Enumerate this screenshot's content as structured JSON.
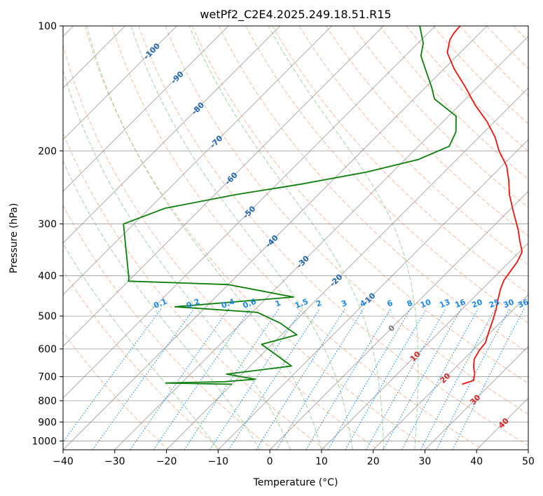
{
  "chart_data": {
    "type": "line",
    "subtype": "skew-t-log-p",
    "title": "wetPf2_C2E4.2025.249.18.51.R15",
    "xlabel": "Temperature (°C)",
    "ylabel": "Pressure (hPa)",
    "xlim": [
      -40,
      50
    ],
    "ylim": [
      1050,
      100
    ],
    "yscale": "log",
    "x_ticks": [
      -40,
      -30,
      -20,
      -10,
      0,
      10,
      20,
      30,
      40,
      50
    ],
    "y_ticks": [
      100,
      200,
      300,
      400,
      500,
      600,
      700,
      800,
      900,
      1000
    ],
    "grid": true,
    "colors": {
      "temperature": "#e8150f",
      "dewpoint": "#0a7d0a",
      "isotherm": "#888888",
      "dry_adiabat": "#f4a582",
      "moist_adiabat": "#8cc98c",
      "mixing_ratio": "#1e88e5",
      "isotherm_label": "#2166ac",
      "warm_isotherm_label": "#d62728",
      "zero_isotherm_label": "#777777"
    },
    "isotherm_labels": [
      {
        "text": "-100",
        "p": 115
      },
      {
        "text": "-90",
        "p": 133
      },
      {
        "text": "-80",
        "p": 158
      },
      {
        "text": "-70",
        "p": 190
      },
      {
        "text": "-60",
        "p": 233
      },
      {
        "text": "-50",
        "p": 281
      },
      {
        "text": "-40",
        "p": 330
      },
      {
        "text": "-30",
        "p": 370
      },
      {
        "text": "-20",
        "p": 410
      },
      {
        "text": "-10",
        "p": 455
      },
      {
        "text": "0",
        "p": 535
      },
      {
        "text": "10",
        "p": 625
      },
      {
        "text": "20",
        "p": 705
      },
      {
        "text": "30",
        "p": 795
      },
      {
        "text": "40",
        "p": 905
      }
    ],
    "mixing_ratio_labels": [
      "0.1",
      "0.2",
      "0.4",
      "0.6",
      "1",
      "1.5",
      "2",
      "3",
      "4",
      "6",
      "8",
      "10",
      "13",
      "16",
      "20",
      "25",
      "30",
      "36"
    ],
    "series": [
      {
        "name": "Temperature",
        "points": [
          {
            "t": 24.5,
            "p": 730
          },
          {
            "t": 26.0,
            "p": 715
          },
          {
            "t": 25.0,
            "p": 690
          },
          {
            "t": 23.5,
            "p": 665
          },
          {
            "t": 22.0,
            "p": 635
          },
          {
            "t": 21.3,
            "p": 605
          },
          {
            "t": 21.0,
            "p": 580
          },
          {
            "t": 19.5,
            "p": 545
          },
          {
            "t": 18.0,
            "p": 510
          },
          {
            "t": 16.5,
            "p": 480
          },
          {
            "t": 15.0,
            "p": 455
          },
          {
            "t": 13.5,
            "p": 430
          },
          {
            "t": 12.5,
            "p": 410
          },
          {
            "t": 12.0,
            "p": 390
          },
          {
            "t": 11.5,
            "p": 370
          },
          {
            "t": 10.5,
            "p": 350
          },
          {
            "t": 8.0,
            "p": 330
          },
          {
            "t": 5.5,
            "p": 310
          },
          {
            "t": 1.0,
            "p": 280
          },
          {
            "t": -3.0,
            "p": 255
          },
          {
            "t": -6.0,
            "p": 235
          },
          {
            "t": -9.0,
            "p": 218
          },
          {
            "t": -13.5,
            "p": 200
          },
          {
            "t": -17.0,
            "p": 185
          },
          {
            "t": -21.5,
            "p": 170
          },
          {
            "t": -27.0,
            "p": 155
          },
          {
            "t": -32.5,
            "p": 140
          },
          {
            "t": -38.0,
            "p": 127
          },
          {
            "t": -42.5,
            "p": 116
          },
          {
            "t": -44.5,
            "p": 108
          },
          {
            "t": -45.0,
            "p": 104
          },
          {
            "t": -45.2,
            "p": 100
          }
        ]
      },
      {
        "name": "Dewpoint",
        "points": [
          {
            "t": -20.0,
            "p": 730
          },
          {
            "t": -33.0,
            "p": 725
          },
          {
            "t": -22.0,
            "p": 720
          },
          {
            "t": -16.5,
            "p": 710
          },
          {
            "t": -23.0,
            "p": 690
          },
          {
            "t": -12.0,
            "p": 660
          },
          {
            "t": -16.5,
            "p": 625
          },
          {
            "t": -22.0,
            "p": 585
          },
          {
            "t": -17.0,
            "p": 555
          },
          {
            "t": -22.5,
            "p": 520
          },
          {
            "t": -29.0,
            "p": 490
          },
          {
            "t": -46.0,
            "p": 475
          },
          {
            "t": -25.0,
            "p": 450
          },
          {
            "t": -40.0,
            "p": 420
          },
          {
            "t": -60.0,
            "p": 412
          },
          {
            "t": -60.5,
            "p": 405
          },
          {
            "t": -72.0,
            "p": 300
          },
          {
            "t": -67.0,
            "p": 275
          },
          {
            "t": -56.0,
            "p": 255
          },
          {
            "t": -45.0,
            "p": 240
          },
          {
            "t": -35.0,
            "p": 225
          },
          {
            "t": -27.5,
            "p": 210
          },
          {
            "t": -24.0,
            "p": 195
          },
          {
            "t": -25.5,
            "p": 180
          },
          {
            "t": -28.5,
            "p": 165
          },
          {
            "t": -36.0,
            "p": 150
          },
          {
            "t": -39.0,
            "p": 140
          },
          {
            "t": -42.5,
            "p": 130
          },
          {
            "t": -47.0,
            "p": 118
          },
          {
            "t": -49.0,
            "p": 110
          },
          {
            "t": -53.0,
            "p": 100
          }
        ]
      }
    ]
  }
}
